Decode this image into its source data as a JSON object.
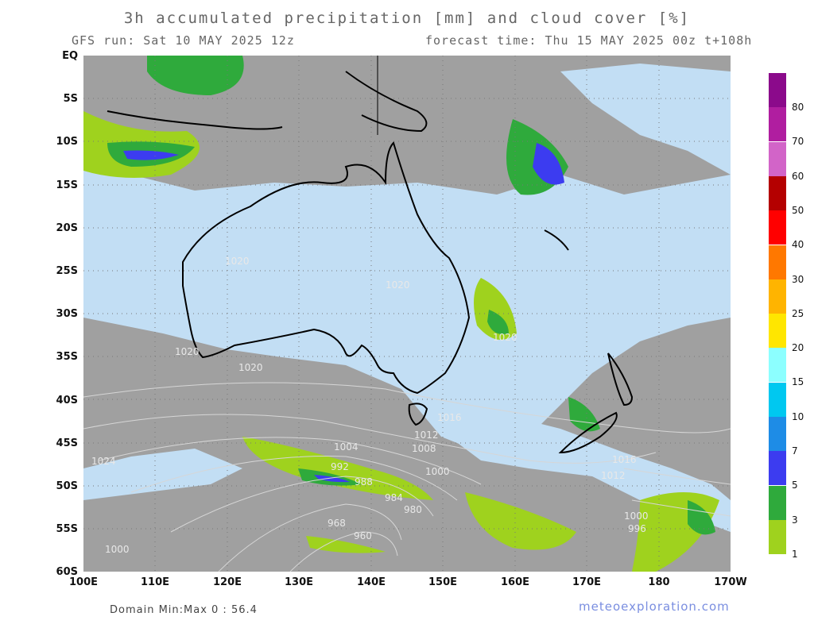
{
  "header": {
    "title": "3h accumulated precipitation [mm] and cloud cover [%]",
    "run": "GFS run: Sat 10 MAY 2025 12z",
    "forecast": "forecast time: Thu 15 MAY 2025 00z  t+108h"
  },
  "axes": {
    "lat_labels": [
      "EQ",
      "5S",
      "10S",
      "15S",
      "20S",
      "25S",
      "30S",
      "35S",
      "40S",
      "45S",
      "50S",
      "55S",
      "60S"
    ],
    "lon_labels": [
      "100E",
      "110E",
      "120E",
      "130E",
      "140E",
      "150E",
      "160E",
      "170E",
      "180",
      "170W"
    ]
  },
  "legend": {
    "labels": [
      "80",
      "70",
      "60",
      "50",
      "40",
      "30",
      "25",
      "20",
      "15",
      "10",
      "7",
      "5",
      "3",
      "1"
    ],
    "colors": [
      "#8b0a8b",
      "#b01ea0",
      "#d264c8",
      "#b40000",
      "#ff0000",
      "#ff7800",
      "#ffb400",
      "#ffe600",
      "#8cffff",
      "#00c8f0",
      "#1e8ce6",
      "#3c3cf0",
      "#2faa3c",
      "#9fd21e"
    ]
  },
  "map": {
    "colors": {
      "ocean_cloud": "#a0a0a0",
      "clear": "#c2def4",
      "coast": "#000000",
      "isobar": "#d6d6d6"
    },
    "isobar_labels": [
      "1024",
      "1020",
      "1020",
      "1020",
      "1020",
      "1020",
      "1016",
      "1012",
      "1008",
      "1004",
      "1000",
      "1000",
      "1000",
      "996",
      "992",
      "988",
      "984",
      "980",
      "968",
      "960",
      "1016",
      "1012"
    ]
  },
  "footer": {
    "domain": "Domain Min:Max 0 : 56.4",
    "credit": "meteoexploration.com"
  }
}
